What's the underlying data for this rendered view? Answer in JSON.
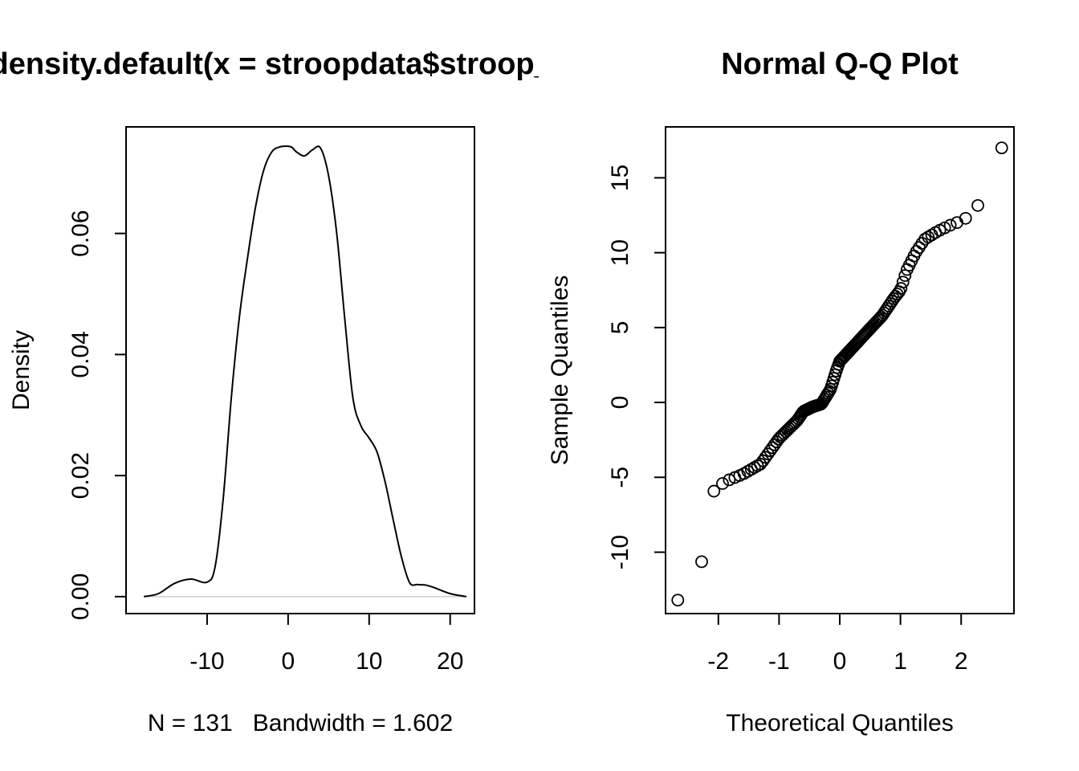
{
  "chart_data": [
    {
      "type": "line",
      "title": "density.default(x = stroopdata$stroop_diff)",
      "xlabel": "N = 131   Bandwidth = 1.602",
      "ylabel": "Density",
      "xlim": [
        -20,
        23
      ],
      "ylim": [
        -0.0028,
        0.0776
      ],
      "xticks": [
        -10,
        0,
        10,
        20
      ],
      "xtick_labels": [
        "-10",
        "0",
        "10",
        "20"
      ],
      "yticks": [
        0.0,
        0.02,
        0.04,
        0.06
      ],
      "ytick_labels": [
        "0.00",
        "0.02",
        "0.04",
        "0.06"
      ],
      "x": [
        -17.8,
        -16,
        -14,
        -12,
        -10,
        -9,
        -8,
        -7,
        -6,
        -5,
        -4,
        -3,
        -2,
        -1,
        0,
        0.5,
        1,
        2,
        3,
        4,
        5,
        6,
        7,
        8,
        9,
        10,
        11,
        12,
        13,
        14,
        15,
        16,
        17,
        18,
        20,
        22
      ],
      "y": [
        0.0,
        0.0005,
        0.0022,
        0.0029,
        0.0024,
        0.005,
        0.0163,
        0.033,
        0.0463,
        0.056,
        0.0645,
        0.0705,
        0.0735,
        0.0743,
        0.0744,
        0.0742,
        0.0735,
        0.0728,
        0.0738,
        0.0741,
        0.0695,
        0.06,
        0.0458,
        0.0328,
        0.0282,
        0.0262,
        0.0238,
        0.0188,
        0.0125,
        0.0065,
        0.0023,
        0.002,
        0.0019,
        0.0015,
        0.0005,
        0.0
      ]
    },
    {
      "type": "scatter",
      "title": "Normal Q-Q Plot",
      "xlabel": "Theoretical Quantiles",
      "ylabel": "Sample Quantiles",
      "xlim": [
        -2.87,
        2.87
      ],
      "ylim": [
        -14.1,
        18.4
      ],
      "xticks": [
        -2,
        -1,
        0,
        1,
        2
      ],
      "xtick_labels": [
        "-2",
        "-1",
        "0",
        "1",
        "2"
      ],
      "yticks": [
        -10,
        -5,
        0,
        5,
        10,
        15
      ],
      "ytick_labels": [
        "-10",
        "-5",
        "0",
        "5",
        "10",
        "15"
      ],
      "n": 131,
      "x_quantiles_comment_free": true,
      "y_anchor_x": [
        -2.65,
        -2.27,
        -2.08,
        -1.9,
        -1.6,
        -1.3,
        -1.0,
        -0.7,
        -0.6,
        -0.45,
        -0.3,
        -0.15,
        -0.05,
        0.0,
        0.15,
        0.4,
        0.7,
        0.9,
        1.0,
        1.1,
        1.25,
        1.4,
        1.6,
        1.8,
        2.05,
        2.27,
        2.65
      ],
      "y_anchor_y": [
        -13.2,
        -10.6,
        -5.95,
        -5.3,
        -4.8,
        -4.1,
        -2.4,
        -1.2,
        -0.6,
        -0.3,
        -0.1,
        0.9,
        2.2,
        2.75,
        3.4,
        4.5,
        5.8,
        7.0,
        7.5,
        8.8,
        10.0,
        10.9,
        11.4,
        11.8,
        12.2,
        13.1,
        17.0
      ]
    }
  ]
}
